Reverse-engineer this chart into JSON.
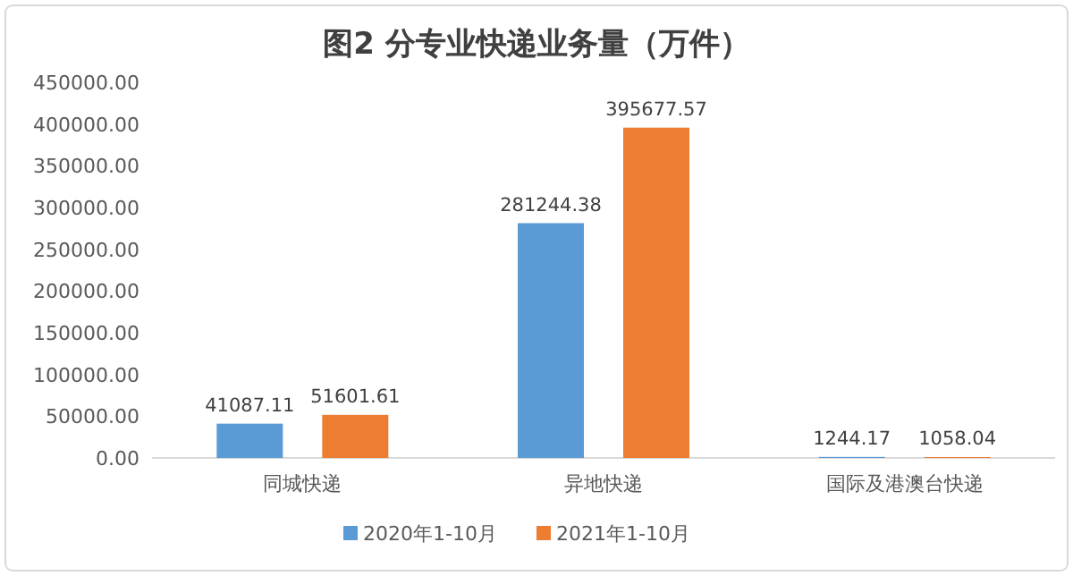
{
  "chart_data": {
    "type": "bar",
    "title": "图2 分专业快递业务量（万件）",
    "categories": [
      "同城快递",
      "异地快递",
      "国际及港澳台快递"
    ],
    "series": [
      {
        "name": "2020年1-10月",
        "color": "#5b9bd5",
        "values": [
          41087.11,
          281244.38,
          1244.17
        ]
      },
      {
        "name": "2021年1-10月",
        "color": "#ed7d31",
        "values": [
          51601.61,
          395677.57,
          1058.04
        ]
      }
    ],
    "ylim": [
      0,
      450000
    ],
    "yticks": [
      {
        "value": 0,
        "label": "0.00"
      },
      {
        "value": 50000,
        "label": "50000.00"
      },
      {
        "value": 100000,
        "label": "100000.00"
      },
      {
        "value": 150000,
        "label": "150000.00"
      },
      {
        "value": 200000,
        "label": "200000.00"
      },
      {
        "value": 250000,
        "label": "250000.00"
      },
      {
        "value": 300000,
        "label": "300000.00"
      },
      {
        "value": 350000,
        "label": "350000.00"
      },
      {
        "value": 400000,
        "label": "400000.00"
      },
      {
        "value": 450000,
        "label": "450000.00"
      }
    ],
    "data_labels": true,
    "legend": "bottom"
  }
}
